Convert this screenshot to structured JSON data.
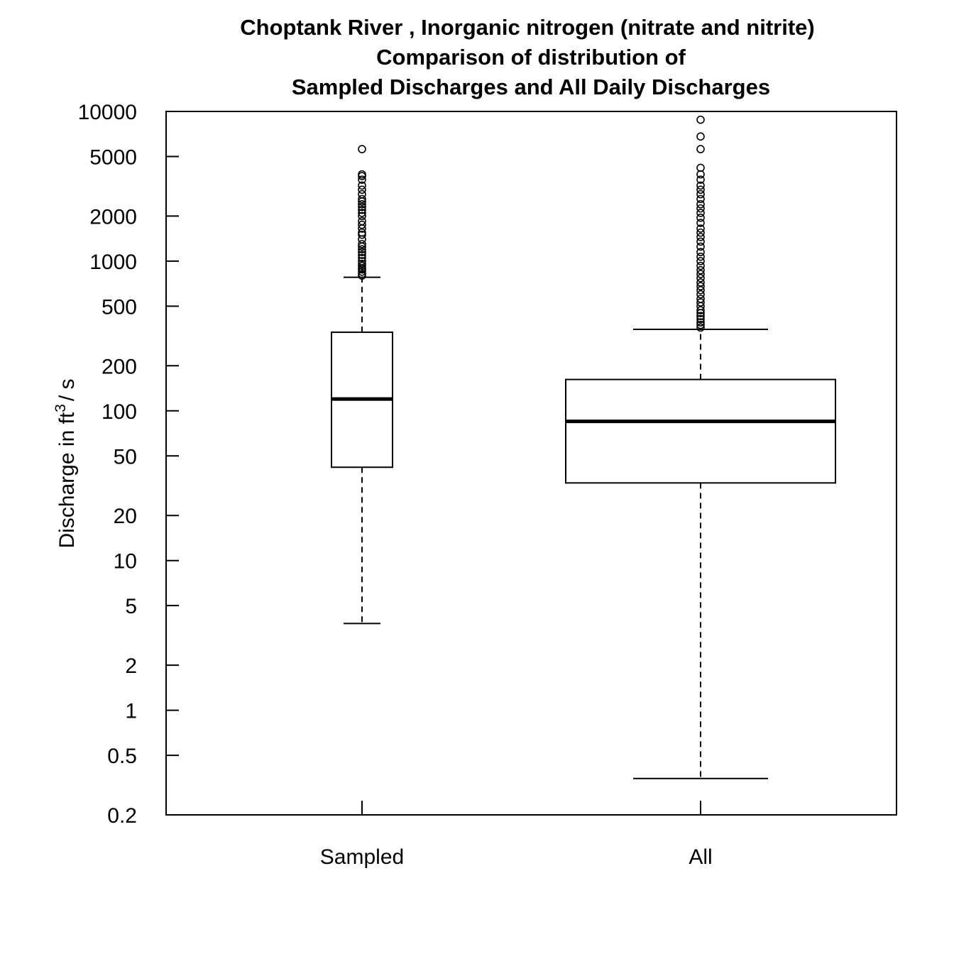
{
  "chart_data": {
    "type": "box",
    "title_lines": [
      "Choptank River , Inorganic nitrogen (nitrate and nitrite)",
      "Comparison of distribution of",
      "Sampled Discharges and All Daily Discharges"
    ],
    "ylabel": {
      "main": "Discharge in ft",
      "superscript": "3",
      "suffix": "/ s"
    },
    "y_scale": "log",
    "ylim": [
      0.2,
      10000
    ],
    "y_ticks": [
      {
        "value": 0.2,
        "label": "0.2"
      },
      {
        "value": 0.5,
        "label": "0.5"
      },
      {
        "value": 1,
        "label": "1"
      },
      {
        "value": 2,
        "label": "2"
      },
      {
        "value": 5,
        "label": "5"
      },
      {
        "value": 10,
        "label": "10"
      },
      {
        "value": 20,
        "label": "20"
      },
      {
        "value": 50,
        "label": "50"
      },
      {
        "value": 100,
        "label": "100"
      },
      {
        "value": 200,
        "label": "200"
      },
      {
        "value": 500,
        "label": "500"
      },
      {
        "value": 1000,
        "label": "1000"
      },
      {
        "value": 2000,
        "label": "2000"
      },
      {
        "value": 5000,
        "label": "5000"
      },
      {
        "value": 10000,
        "label": "10000"
      }
    ],
    "categories": [
      "Sampled",
      "All"
    ],
    "boxes": [
      {
        "name": "Sampled",
        "whisker_low": 3.8,
        "q1": 42,
        "median": 120,
        "q3": 335,
        "whisker_high": 780,
        "outliers": [
          800,
          820,
          850,
          880,
          900,
          930,
          960,
          1000,
          1050,
          1100,
          1150,
          1200,
          1250,
          1300,
          1400,
          1500,
          1550,
          1650,
          1750,
          1850,
          2000,
          2100,
          2200,
          2300,
          2400,
          2500,
          2600,
          2800,
          3000,
          3200,
          3500,
          3700,
          3800,
          5600
        ]
      },
      {
        "name": "All",
        "whisker_low": 0.35,
        "q1": 33,
        "median": 85,
        "q3": 162,
        "whisker_high": 350,
        "outliers": [
          360,
          375,
          390,
          410,
          430,
          450,
          470,
          500,
          530,
          560,
          600,
          640,
          680,
          720,
          770,
          820,
          870,
          930,
          1000,
          1070,
          1150,
          1250,
          1350,
          1450,
          1550,
          1650,
          1800,
          1950,
          2100,
          2250,
          2400,
          2600,
          2800,
          3000,
          3200,
          3500,
          3800,
          4200,
          5600,
          6800,
          8800
        ]
      }
    ],
    "grid": false,
    "legend": "none"
  }
}
